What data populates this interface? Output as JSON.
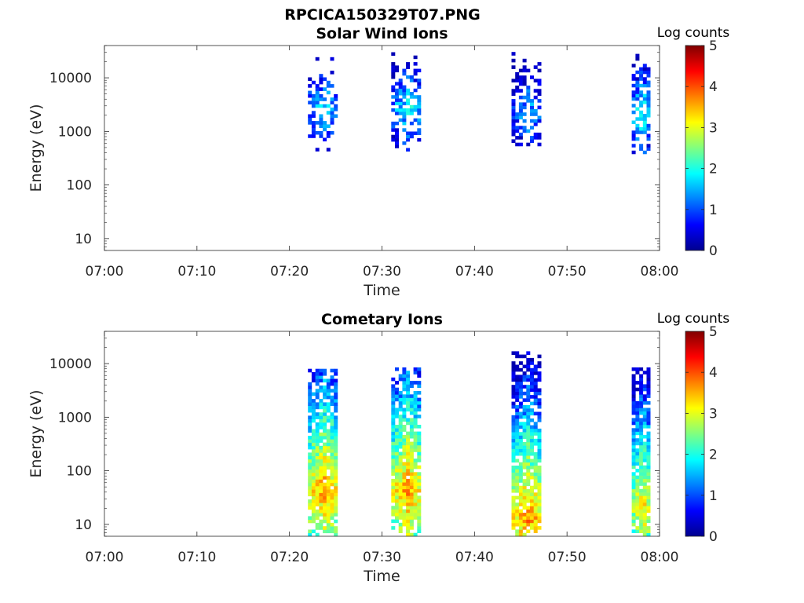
{
  "figure": {
    "title": "RPCICA150329T07.PNG"
  },
  "colors": {
    "jet": [
      "#00008f",
      "#0000ff",
      "#0080ff",
      "#00ffff",
      "#80ff80",
      "#ffff00",
      "#ff8000",
      "#ff0000",
      "#800000"
    ],
    "axis": "#262626"
  },
  "chart_data": [
    {
      "type": "heatmap",
      "title": "Solar Wind Ions",
      "xlabel": "Time",
      "ylabel": "Energy (eV)",
      "x_ticks": [
        "07:00",
        "07:10",
        "07:20",
        "07:30",
        "07:40",
        "07:50",
        "08:00"
      ],
      "xlim": [
        "07:00",
        "08:00"
      ],
      "y_scale": "log",
      "y_ticks": [
        10,
        100,
        1000,
        10000
      ],
      "y_tick_labels": [
        "10",
        "100",
        "1000",
        "10000"
      ],
      "ylim": [
        6,
        40000
      ],
      "colorbar": {
        "label": "Log counts",
        "range": [
          0,
          5
        ],
        "ticks": [
          "0",
          "1",
          "2",
          "3",
          "4",
          "5"
        ]
      },
      "bursts": [
        {
          "start": "07:22",
          "end": "07:25",
          "e_min": 320,
          "e_max": 28000,
          "core_e": 2500,
          "peak": 1.8,
          "fill": 0.55
        },
        {
          "start": "07:31",
          "end": "07:34",
          "e_min": 320,
          "e_max": 30000,
          "core_e": 2500,
          "peak": 1.9,
          "fill": 0.65
        },
        {
          "start": "07:44",
          "end": "07:47",
          "e_min": 400,
          "e_max": 35000,
          "core_e": 2200,
          "peak": 1.6,
          "fill": 0.6
        },
        {
          "start": "07:57",
          "end": "07:59",
          "e_min": 380,
          "e_max": 28000,
          "core_e": 2000,
          "peak": 2.1,
          "fill": 0.7
        }
      ]
    },
    {
      "type": "heatmap",
      "title": "Cometary Ions",
      "xlabel": "Time",
      "ylabel": "Energy (eV)",
      "x_ticks": [
        "07:00",
        "07:10",
        "07:20",
        "07:30",
        "07:40",
        "07:50",
        "08:00"
      ],
      "xlim": [
        "07:00",
        "08:00"
      ],
      "y_scale": "log",
      "y_ticks": [
        10,
        100,
        1000,
        10000
      ],
      "y_tick_labels": [
        "10",
        "100",
        "1000",
        "10000"
      ],
      "ylim": [
        6,
        40000
      ],
      "colorbar": {
        "label": "Log counts",
        "range": [
          0,
          5
        ],
        "ticks": [
          "0",
          "1",
          "2",
          "3",
          "4",
          "5"
        ]
      },
      "bursts": [
        {
          "start": "07:22",
          "end": "07:25",
          "e_min": 6,
          "e_max": 8000,
          "core_e": 40,
          "peak": 3.6,
          "fill": 0.95
        },
        {
          "start": "07:31",
          "end": "07:34",
          "e_min": 6,
          "e_max": 8500,
          "core_e": 40,
          "peak": 3.6,
          "fill": 0.95
        },
        {
          "start": "07:44",
          "end": "07:47",
          "e_min": 6,
          "e_max": 17000,
          "core_e": 12,
          "peak": 3.7,
          "fill": 0.95
        },
        {
          "start": "07:57",
          "end": "07:59",
          "e_min": 6,
          "e_max": 8500,
          "core_e": 20,
          "peak": 3.3,
          "fill": 0.95
        }
      ]
    }
  ]
}
